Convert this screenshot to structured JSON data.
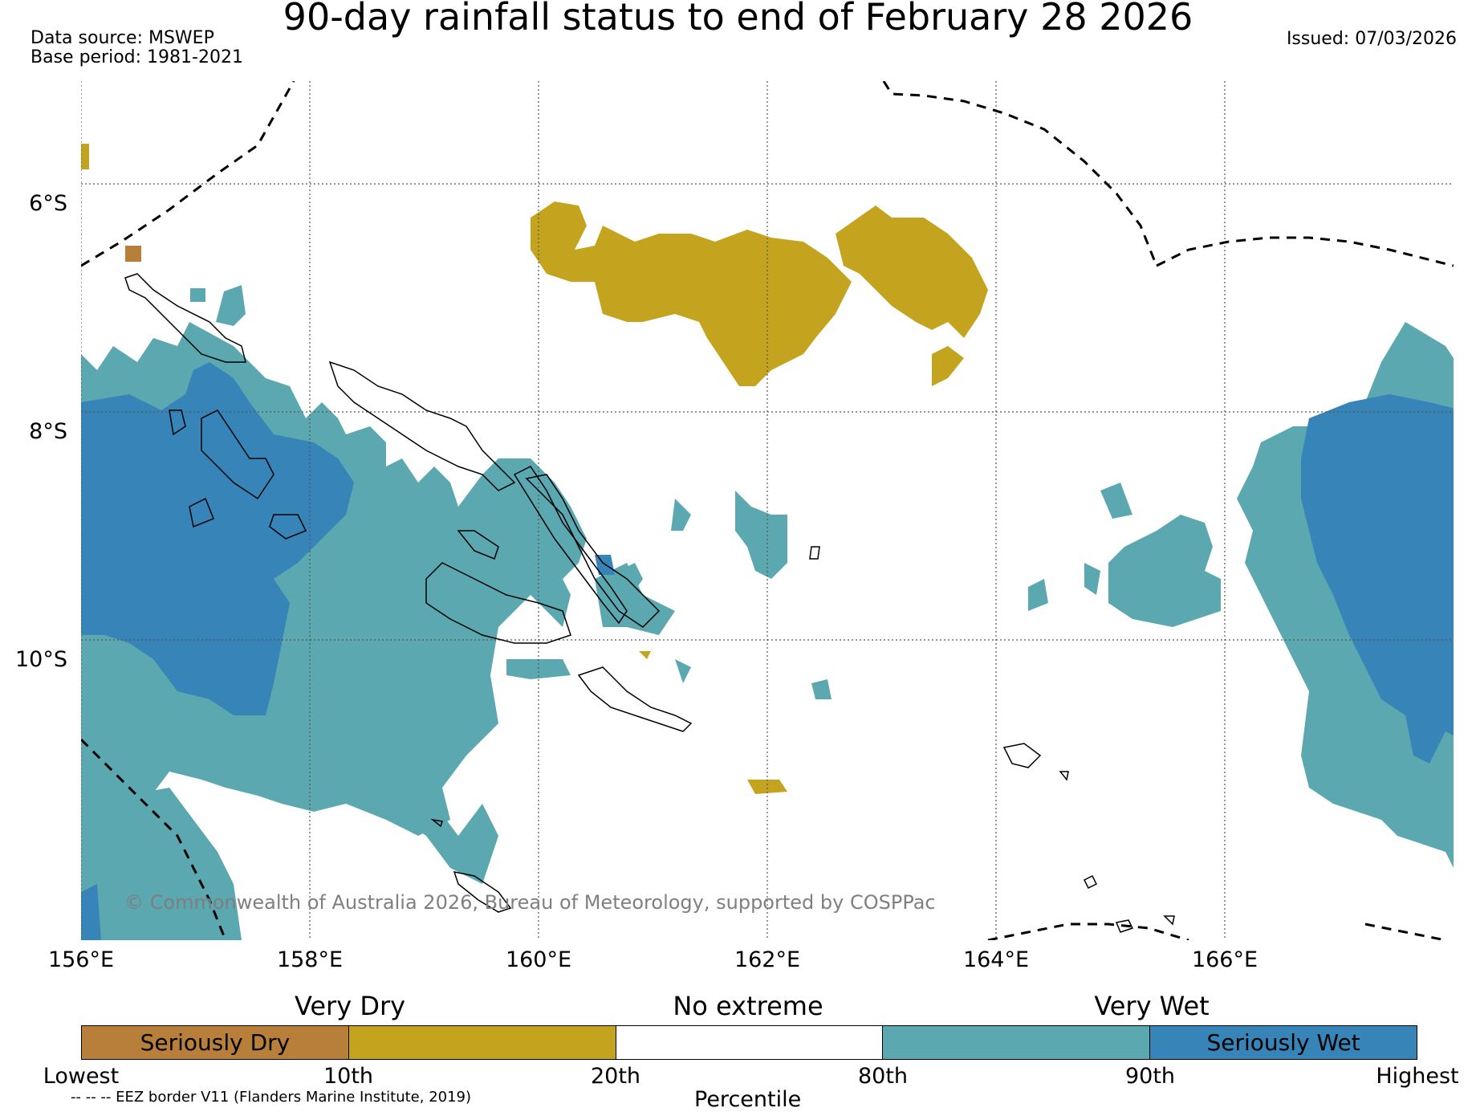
{
  "header": {
    "title": "90-day rainfall status to end of February 28 2026",
    "data_source": "Data source: MSWEP",
    "base_period": "Base period: 1981-2021",
    "issued": "Issued: 07/03/2026"
  },
  "map": {
    "lat_labels": [
      "6°S",
      "8°S",
      "10°S"
    ],
    "lon_labels": [
      "156°E",
      "158°E",
      "160°E",
      "162°E",
      "164°E",
      "166°E"
    ],
    "extent": {
      "lon_min": 156,
      "lon_max": 168,
      "lat_min": -12.5,
      "lat_max": -5
    },
    "copyright": "© Commonwealth of Australia 2026, Bureau of Meteorology, supported by COSPPac",
    "colors": {
      "seriously_dry": "#b87f3a",
      "very_dry": "#c4a41e",
      "no_extreme": "#ffffff",
      "very_wet": "#5ba8b0",
      "seriously_wet": "#3784b8",
      "coast": "#000000",
      "eez": "#000000",
      "grid": "#555555"
    }
  },
  "legend": {
    "category_labels": [
      "Very Dry",
      "No extreme",
      "Very Wet"
    ],
    "segments": [
      {
        "label": "Seriously Dry",
        "color": "#b87f3a"
      },
      {
        "label": "",
        "color": "#c4a41e"
      },
      {
        "label": "",
        "color": "#ffffff"
      },
      {
        "label": "",
        "color": "#5ba8b0"
      },
      {
        "label": "Seriously Wet",
        "color": "#3784b8"
      }
    ],
    "ticks": [
      "Lowest",
      "10th",
      "20th",
      "80th",
      "90th",
      "Highest"
    ],
    "axis_label": "Percentile",
    "eez_note": "-- -- -- EEZ border V11 (Flanders Marine Institute, 2019)"
  }
}
